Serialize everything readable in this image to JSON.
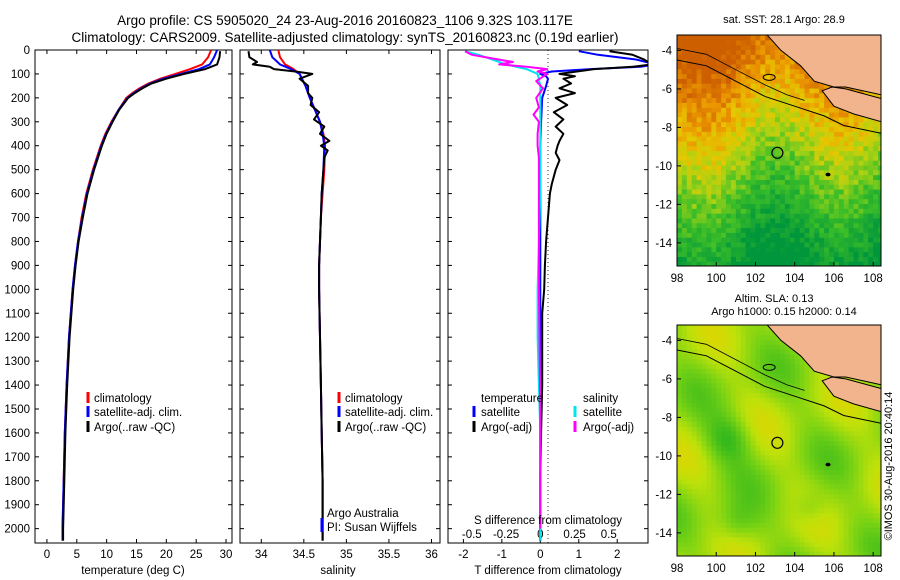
{
  "title_line1": "Argo profile: CS 5905020_24 23-Aug-2016 20160823_1106 9.32S 103.117E",
  "title_line2": "Climatology: CARS2009. Satellite-adjusted climatology: synTS_20160823.nc (0.19d earlier)",
  "colors": {
    "climatology": "#ff0000",
    "satellite": "#0000ff",
    "argo": "#000000",
    "sat_salinity": "#00e5ee",
    "argo_salinity": "#ff00ff",
    "land": "#f2b48c"
  },
  "depth_axis": {
    "ticks": [
      0,
      100,
      200,
      300,
      400,
      500,
      600,
      700,
      800,
      900,
      1000,
      1100,
      1200,
      1300,
      1400,
      1500,
      1600,
      1700,
      1800,
      1900,
      2000
    ],
    "range": [
      0,
      2060
    ]
  },
  "chart_data": [
    {
      "type": "line",
      "id": "temperature",
      "xlabel": "temperature (deg C)",
      "xlim": [
        -2,
        31
      ],
      "xticks": [
        0,
        5,
        10,
        15,
        20,
        25,
        30
      ],
      "legend": [
        "climatology",
        "satellite-adj. clim.",
        "Argo(..raw -QC)"
      ],
      "series": [
        {
          "name": "climatology",
          "color": "#ff0000",
          "depth": [
            0,
            30,
            60,
            80,
            100,
            120,
            140,
            160,
            180,
            200,
            250,
            300,
            350,
            400,
            500,
            600,
            700,
            800,
            900,
            1000,
            1200,
            1400,
            1600,
            1800,
            2000,
            2050
          ],
          "values": [
            27.5,
            27.0,
            26.0,
            24.0,
            21.5,
            19.0,
            17.0,
            15.5,
            14.3,
            13.3,
            12.0,
            10.8,
            9.8,
            9.0,
            7.7,
            6.6,
            5.8,
            5.2,
            4.7,
            4.3,
            3.7,
            3.3,
            3.0,
            2.8,
            2.6,
            2.6
          ]
        },
        {
          "name": "satellite",
          "color": "#0000ff",
          "depth": [
            0,
            30,
            60,
            80,
            100,
            120,
            140,
            160,
            180,
            200,
            250,
            300,
            350,
            400,
            500,
            600,
            700,
            800,
            900,
            1000,
            1200,
            1400,
            1600,
            1800,
            2000,
            2050
          ],
          "values": [
            28.5,
            28.0,
            27.3,
            25.5,
            22.5,
            19.5,
            17.3,
            15.8,
            14.5,
            13.5,
            12.0,
            10.9,
            9.9,
            9.1,
            7.8,
            6.7,
            5.9,
            5.2,
            4.7,
            4.3,
            3.7,
            3.3,
            3.0,
            2.8,
            2.6,
            2.6
          ]
        },
        {
          "name": "argo",
          "color": "#000000",
          "depth": [
            5,
            30,
            60,
            70,
            80,
            100,
            120,
            140,
            160,
            180,
            200,
            250,
            300,
            350,
            400,
            500,
            600,
            700,
            800,
            900,
            1000,
            1200,
            1400,
            1600,
            1800,
            2000,
            2050
          ],
          "values": [
            29.0,
            28.9,
            28.5,
            27.5,
            26.5,
            23.0,
            20.0,
            17.5,
            16.0,
            14.7,
            13.6,
            12.1,
            11.0,
            10.0,
            9.2,
            7.9,
            6.8,
            6.0,
            5.3,
            4.8,
            4.4,
            3.8,
            3.4,
            3.1,
            2.9,
            2.7,
            2.7
          ]
        }
      ]
    },
    {
      "type": "line",
      "id": "salinity",
      "xlabel": "salinity",
      "xlim": [
        33.75,
        36.1
      ],
      "xticks": [
        34,
        34.5,
        35,
        35.5,
        36
      ],
      "legend": [
        "climatology",
        "satellite-adj. clim.",
        "Argo(..raw -QC)"
      ],
      "series": [
        {
          "name": "climatology",
          "color": "#ff0000",
          "depth": [
            0,
            30,
            60,
            80,
            100,
            150,
            200,
            250,
            300,
            350,
            400,
            500,
            600,
            700,
            800,
            900,
            1000,
            1200,
            1400,
            1600,
            1800,
            2000,
            2050
          ],
          "values": [
            34.2,
            34.22,
            34.28,
            34.38,
            34.45,
            34.52,
            34.57,
            34.63,
            34.69,
            34.73,
            34.75,
            34.74,
            34.72,
            34.7,
            34.69,
            34.68,
            34.68,
            34.69,
            34.7,
            34.71,
            34.72,
            34.72,
            34.72
          ]
        },
        {
          "name": "satellite",
          "color": "#0000ff",
          "depth": [
            0,
            30,
            60,
            80,
            100,
            150,
            200,
            250,
            300,
            350,
            400,
            500,
            600,
            700,
            800,
            900,
            1000,
            1200,
            1400,
            1600,
            1800,
            2000,
            2050
          ],
          "values": [
            34.1,
            34.13,
            34.22,
            34.35,
            34.45,
            34.52,
            34.57,
            34.63,
            34.69,
            34.72,
            34.74,
            34.73,
            34.71,
            34.7,
            34.69,
            34.68,
            34.68,
            34.69,
            34.7,
            34.71,
            34.72,
            34.72,
            34.72
          ]
        },
        {
          "name": "argo",
          "color": "#000000",
          "depth": [
            5,
            30,
            50,
            60,
            70,
            80,
            90,
            100,
            120,
            150,
            180,
            200,
            230,
            260,
            290,
            320,
            350,
            380,
            400,
            420,
            450,
            500,
            550,
            600,
            700,
            800,
            900,
            1000,
            1200,
            1400,
            1600,
            1800,
            2000,
            2050
          ],
          "values": [
            33.85,
            33.86,
            33.95,
            33.9,
            34.1,
            34.15,
            34.4,
            34.6,
            34.45,
            34.55,
            34.55,
            34.6,
            34.58,
            34.68,
            34.62,
            34.74,
            34.69,
            34.8,
            34.7,
            34.78,
            34.74,
            34.73,
            34.72,
            34.71,
            34.7,
            34.69,
            34.68,
            34.68,
            34.69,
            34.7,
            34.71,
            34.72,
            34.72,
            34.72
          ]
        }
      ]
    },
    {
      "type": "line",
      "id": "difference",
      "xlabel": "T difference from climatology",
      "xlabel_top": "S difference from climatology",
      "xlim": [
        -2.4,
        2.8
      ],
      "xticks": [
        -2,
        -1,
        0,
        1,
        2
      ],
      "s_ticks": [
        "-0.5",
        "-0.25",
        "0",
        "0.25",
        "0.5"
      ],
      "legend_temperature_title": "temperature",
      "legend_salinity_title": "salinity",
      "legend_labels": [
        "satellite",
        "Argo(-adj)"
      ],
      "series": [
        {
          "name": "satellite T",
          "color": "#0000ff",
          "depth": [
            5,
            20,
            40,
            60,
            70,
            80,
            90,
            100,
            110,
            120,
            150,
            200,
            300,
            400,
            600,
            800,
            1000,
            1500,
            2000,
            2050
          ],
          "values": [
            1.0,
            1.5,
            2.5,
            3.0,
            2.6,
            1.3,
            0.3,
            0.0,
            0.15,
            0.2,
            0.15,
            0.05,
            0.02,
            0.0,
            0.0,
            0.0,
            0.0,
            0.0,
            0.0,
            0.0
          ]
        },
        {
          "name": "Argo T",
          "color": "#000000",
          "depth": [
            5,
            20,
            40,
            60,
            70,
            80,
            100,
            110,
            120,
            140,
            160,
            180,
            200,
            230,
            260,
            290,
            320,
            350,
            380,
            400,
            430,
            460,
            500,
            560,
            600,
            700,
            800,
            900,
            1000,
            1100,
            1200,
            1400,
            1600,
            1800,
            2000,
            2050
          ],
          "values": [
            1.8,
            2.4,
            2.7,
            2.9,
            2.4,
            1.4,
            0.5,
            0.9,
            0.6,
            0.8,
            0.5,
            0.9,
            0.4,
            0.7,
            0.35,
            0.6,
            0.4,
            0.6,
            0.5,
            0.45,
            0.4,
            0.5,
            0.4,
            0.3,
            0.25,
            0.2,
            0.15,
            0.12,
            0.1,
            0.05,
            0.05,
            0.05,
            0.02,
            0.0,
            0.0,
            0.0
          ]
        },
        {
          "name": "satellite S",
          "color": "#00e5ee",
          "depth": [
            5,
            20,
            40,
            60,
            80,
            100,
            150,
            200,
            300,
            400,
            600,
            800,
            1000,
            1200,
            1400,
            1600,
            1800,
            2000,
            2050
          ],
          "values": [
            -0.55,
            -0.45,
            -0.35,
            -0.25,
            -0.1,
            -0.02,
            0.0,
            0.0,
            0.0,
            0.0,
            0.0,
            -0.01,
            -0.02,
            -0.02,
            -0.01,
            0.0,
            0.0,
            0.0,
            0.0
          ]
        },
        {
          "name": "Argo S",
          "color": "#ff00ff",
          "depth": [
            5,
            20,
            40,
            50,
            60,
            70,
            80,
            90,
            100,
            130,
            160,
            200,
            240,
            270,
            300,
            350,
            400,
            450,
            500,
            600,
            800,
            1000,
            1500,
            2000
          ],
          "values": [
            -0.55,
            -0.5,
            -0.3,
            -0.2,
            -0.3,
            -0.1,
            0.05,
            -0.02,
            0.05,
            -0.03,
            0.02,
            -0.03,
            -0.01,
            -0.05,
            -0.01,
            -0.02,
            -0.02,
            -0.01,
            -0.01,
            -0.01,
            -0.01,
            -0.01,
            0.0,
            0.0
          ]
        }
      ]
    },
    {
      "type": "heatmap",
      "id": "sst_map",
      "title": "sat. SST: 28.1  Argo: 28.9",
      "xlim": [
        98,
        108.4
      ],
      "ylim": [
        -15.2,
        -3.2
      ],
      "xticks": [
        98,
        100,
        102,
        104,
        106,
        108
      ],
      "yticks": [
        -4,
        -6,
        -8,
        -10,
        -12,
        -14
      ],
      "argo_position": [
        103.117,
        -9.32
      ]
    },
    {
      "type": "heatmap",
      "id": "sla_map",
      "title_line1": "Altim. SLA: 0.13",
      "title_line2": "Argo h1000: 0.15 h2000: 0.14",
      "xlim": [
        98,
        108.4
      ],
      "ylim": [
        -15.2,
        -3.2
      ],
      "xticks": [
        98,
        100,
        102,
        104,
        106,
        108
      ],
      "yticks": [
        -4,
        -6,
        -8,
        -10,
        -12,
        -14
      ],
      "argo_position": [
        103.117,
        -9.32
      ]
    }
  ],
  "legend_texts": {
    "source": "Argo Australia",
    "pi": "PI: Susan Wijffels"
  },
  "credit": "©IMOS 30-Aug-2016 20:40:14"
}
